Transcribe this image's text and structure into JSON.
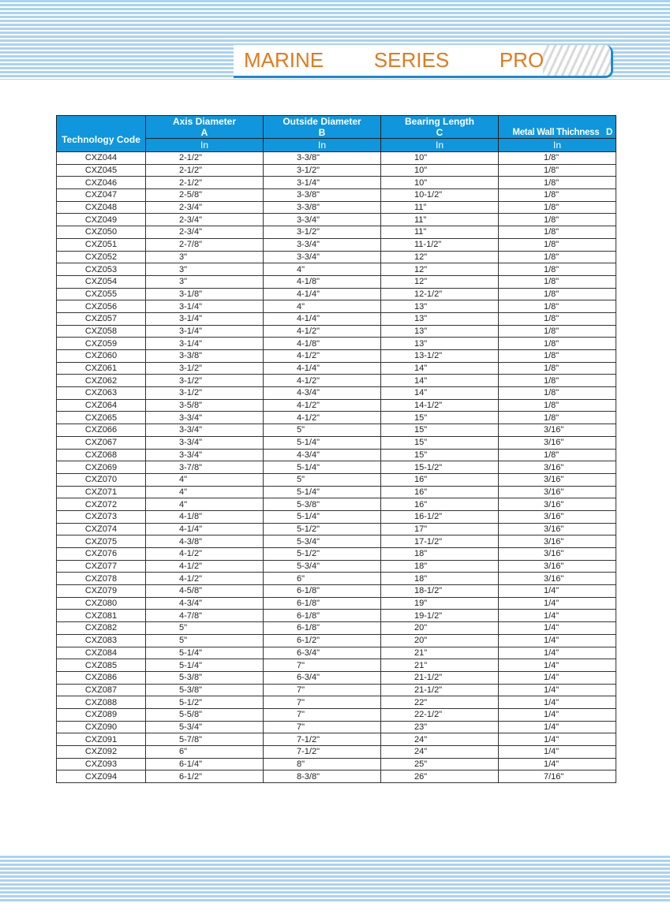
{
  "banner": {
    "title": "MARINE   SERIES   PRODUCTS"
  },
  "table": {
    "headers": {
      "code": "Technology Code",
      "a": "Axis Diameter",
      "a_letter": "A",
      "b": "Outside Diameter",
      "b_letter": "B",
      "c": "Bearing Length",
      "c_letter": "C",
      "d": "Metal Wall Thichness   D",
      "unit": "In"
    },
    "rows": [
      [
        "CXZ044",
        "2-1/2\"",
        "3-3/8\"",
        "10\"",
        "1/8\""
      ],
      [
        "CXZ045",
        "2-1/2\"",
        "3-1/2\"",
        "10\"",
        "1/8\""
      ],
      [
        "CXZ046",
        "2-1/2\"",
        "3-1/4\"",
        "10\"",
        "1/8\""
      ],
      [
        "CXZ047",
        "2-5/8\"",
        "3-3/8\"",
        "10-1/2\"",
        "1/8\""
      ],
      [
        "CXZ048",
        "2-3/4\"",
        "3-3/8\"",
        "11\"",
        "1/8\""
      ],
      [
        "CXZ049",
        "2-3/4\"",
        "3-3/4\"",
        "11\"",
        "1/8\""
      ],
      [
        "CXZ050",
        "2-3/4\"",
        "3-1/2\"",
        "11\"",
        "1/8\""
      ],
      [
        "CXZ051",
        "2-7/8\"",
        "3-3/4\"",
        "11-1/2\"",
        "1/8\""
      ],
      [
        "CXZ052",
        "3\"",
        "3-3/4\"",
        "12\"",
        "1/8\""
      ],
      [
        "CXZ053",
        "3\"",
        "4\"",
        "12\"",
        "1/8\""
      ],
      [
        "CXZ054",
        "3\"",
        "4-1/8\"",
        "12\"",
        "1/8\""
      ],
      [
        "CXZ055",
        "3-1/8\"",
        "4-1/4\"",
        "12-1/2\"",
        "1/8\""
      ],
      [
        "CXZ056",
        "3-1/4\"",
        "4\"",
        "13\"",
        "1/8\""
      ],
      [
        "CXZ057",
        "3-1/4\"",
        "4-1/4\"",
        "13\"",
        "1/8\""
      ],
      [
        "CXZ058",
        "3-1/4\"",
        "4-1/2\"",
        "13\"",
        "1/8\""
      ],
      [
        "CXZ059",
        "3-1/4\"",
        "4-1/8\"",
        "13\"",
        "1/8\""
      ],
      [
        "CXZ060",
        "3-3/8\"",
        "4-1/2\"",
        "13-1/2\"",
        "1/8\""
      ],
      [
        "CXZ061",
        "3-1/2\"",
        "4-1/4\"",
        "14\"",
        "1/8\""
      ],
      [
        "CXZ062",
        "3-1/2\"",
        "4-1/2\"",
        "14\"",
        "1/8\""
      ],
      [
        "CXZ063",
        "3-1/2\"",
        "4-3/4\"",
        "14\"",
        "1/8\""
      ],
      [
        "CXZ064",
        "3-5/8\"",
        "4-1/2\"",
        "14-1/2\"",
        "1/8\""
      ],
      [
        "CXZ065",
        "3-3/4\"",
        "4-1/2\"",
        "15\"",
        "1/8\""
      ],
      [
        "CXZ066",
        "3-3/4\"",
        "5\"",
        "15\"",
        "3/16\""
      ],
      [
        "CXZ067",
        "3-3/4\"",
        "5-1/4\"",
        "15\"",
        "3/16\""
      ],
      [
        "CXZ068",
        "3-3/4\"",
        "4-3/4\"",
        "15\"",
        "1/8\""
      ],
      [
        "CXZ069",
        "3-7/8\"",
        "5-1/4\"",
        "15-1/2\"",
        "3/16\""
      ],
      [
        "CXZ070",
        "4\"",
        "5\"",
        "16\"",
        "3/16\""
      ],
      [
        "CXZ071",
        "4\"",
        "5-1/4\"",
        "16\"",
        "3/16\""
      ],
      [
        "CXZ072",
        "4\"",
        "5-3/8\"",
        "16\"",
        "3/16\""
      ],
      [
        "CXZ073",
        "4-1/8\"",
        "5-1/4\"",
        "16-1/2\"",
        "3/16\""
      ],
      [
        "CXZ074",
        "4-1/4\"",
        "5-1/2\"",
        "17\"",
        "3/16\""
      ],
      [
        "CXZ075",
        "4-3/8\"",
        "5-3/4\"",
        "17-1/2\"",
        "3/16\""
      ],
      [
        "CXZ076",
        "4-1/2\"",
        "5-1/2\"",
        "18\"",
        "3/16\""
      ],
      [
        "CXZ077",
        "4-1/2\"",
        "5-3/4\"",
        "18\"",
        "3/16\""
      ],
      [
        "CXZ078",
        "4-1/2\"",
        "6\"",
        "18\"",
        "3/16\""
      ],
      [
        "CXZ079",
        "4-5/8\"",
        "6-1/8\"",
        "18-1/2\"",
        "1/4\""
      ],
      [
        "CXZ080",
        "4-3/4\"",
        "6-1/8\"",
        "19\"",
        "1/4\""
      ],
      [
        "CXZ081",
        "4-7/8\"",
        "6-1/8\"",
        "19-1/2\"",
        "1/4\""
      ],
      [
        "CXZ082",
        "5\"",
        "6-1/8\"",
        "20\"",
        "1/4\""
      ],
      [
        "CXZ083",
        "5\"",
        "6-1/2\"",
        "20\"",
        "1/4\""
      ],
      [
        "CXZ084",
        "5-1/4\"",
        "6-3/4\"",
        "21\"",
        "1/4\""
      ],
      [
        "CXZ085",
        "5-1/4\"",
        "7\"",
        "21\"",
        "1/4\""
      ],
      [
        "CXZ086",
        "5-3/8\"",
        "6-3/4\"",
        "21-1/2\"",
        "1/4\""
      ],
      [
        "CXZ087",
        "5-3/8\"",
        "7\"",
        "21-1/2\"",
        "1/4\""
      ],
      [
        "CXZ088",
        "5-1/2\"",
        "7\"",
        "22\"",
        "1/4\""
      ],
      [
        "CXZ089",
        "5-5/8\"",
        "7\"",
        "22-1/2\"",
        "1/4\""
      ],
      [
        "CXZ090",
        "5-3/4\"",
        "7\"",
        "23\"",
        "1/4\""
      ],
      [
        "CXZ091",
        "5-7/8\"",
        "7-1/2\"",
        "24\"",
        "1/4\""
      ],
      [
        "CXZ092",
        "6\"",
        "7-1/2\"",
        "24\"",
        "1/4\""
      ],
      [
        "CXZ093",
        "6-1/4\"",
        "8\"",
        "25\"",
        "1/4\""
      ],
      [
        "CXZ094",
        "6-1/2\"",
        "8-3/8\"",
        "26\"",
        "7/16\""
      ]
    ]
  }
}
